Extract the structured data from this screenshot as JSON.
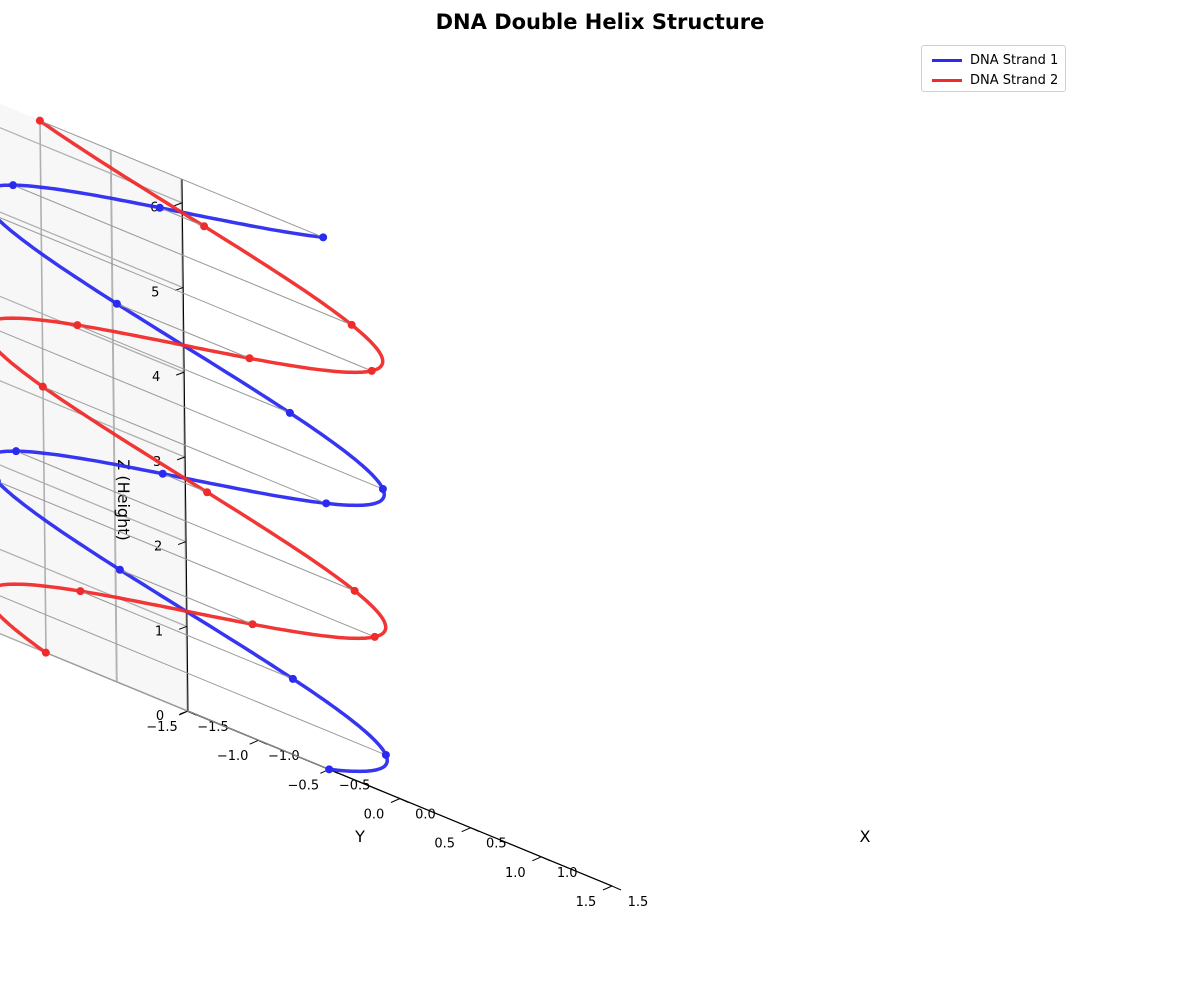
{
  "chart_data": {
    "type": "line",
    "title": "DNA Double Helix Structure",
    "xlabel": "X",
    "ylabel": "Y",
    "zlabel": "Z (Height)",
    "xlim": [
      -1.5,
      1.5
    ],
    "ylim": [
      -1.5,
      1.5
    ],
    "zlim": [
      0,
      6.28
    ],
    "x_ticks": [
      "−1.5",
      "−1.0",
      "−0.5",
      "0.0",
      "0.5",
      "1.0",
      "1.5"
    ],
    "y_ticks": [
      "−1.5",
      "−1.0",
      "−0.5",
      "0.0",
      "0.5",
      "1.0",
      "1.5"
    ],
    "z_ticks": [
      "0",
      "1",
      "2",
      "3",
      "4",
      "5",
      "6"
    ],
    "grid": true,
    "legend_position": "top-right",
    "helix": {
      "radius": 1.0,
      "turns": 2,
      "z_range": [
        0,
        6.28
      ]
    },
    "series": [
      {
        "name": "DNA Strand 1",
        "color": "#2b2bf0",
        "phase_degrees": 0
      },
      {
        "name": "DNA Strand 2",
        "color": "#f02b2b",
        "phase_degrees": 180
      }
    ],
    "base_pair_markers": 15
  }
}
